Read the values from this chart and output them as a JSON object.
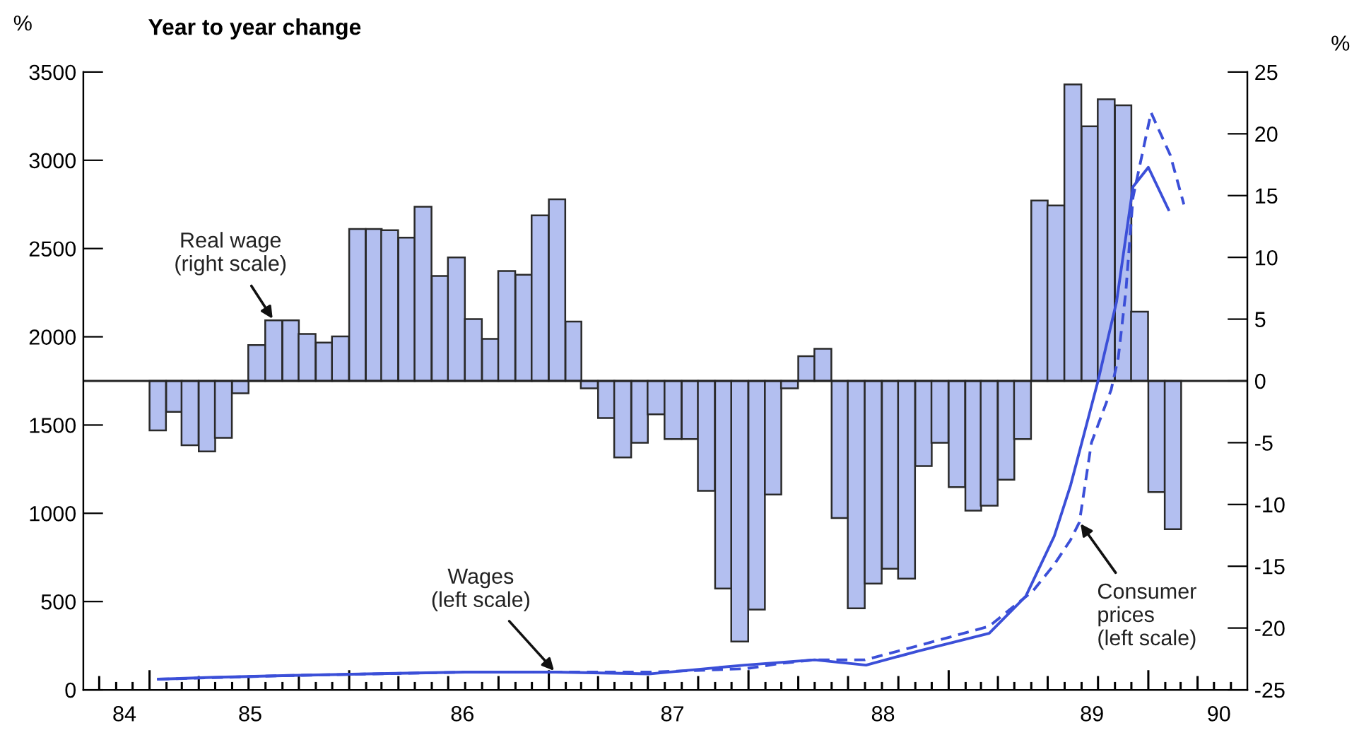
{
  "chart_data": {
    "type": "bar",
    "title": "Year to year change",
    "ylabel": "%",
    "y2label": "%",
    "xlim": [
      "1984-09-02",
      "1990-07-01"
    ],
    "xticks": [
      {
        "value": "1984-11-16",
        "label": "84"
      },
      {
        "value": "1985-07-04",
        "label": "85"
      },
      {
        "value": "1986-07-27",
        "label": "86"
      },
      {
        "value": "1987-08-15",
        "label": "87"
      },
      {
        "value": "1988-09-03",
        "label": "88"
      },
      {
        "value": "1989-09-20",
        "label": "89"
      },
      {
        "value": "1990-05-10",
        "label": "90"
      },
      {
        "value": "1984-10",
        "label": null
      },
      {
        "value": "1984-11",
        "label": null
      },
      {
        "value": "1984-12",
        "label": null
      },
      {
        "value": "1985-01",
        "label": null
      },
      {
        "value": "1985-02",
        "label": null
      },
      {
        "value": "1985-03",
        "label": null
      },
      {
        "value": "1985-04",
        "label": null
      },
      {
        "value": "1985-05",
        "label": null
      },
      {
        "value": "1985-06",
        "label": null
      },
      {
        "value": "1985-07",
        "label": null
      },
      {
        "value": "1985-08",
        "label": null
      },
      {
        "value": "1985-09",
        "label": null
      },
      {
        "value": "1985-10",
        "label": null
      },
      {
        "value": "1985-11",
        "label": null
      },
      {
        "value": "1985-12",
        "label": null
      },
      {
        "value": "1986-01",
        "label": null
      },
      {
        "value": "1986-02",
        "label": null
      },
      {
        "value": "1986-03",
        "label": null
      },
      {
        "value": "1986-04",
        "label": null
      },
      {
        "value": "1986-05",
        "label": null
      },
      {
        "value": "1986-06",
        "label": null
      },
      {
        "value": "1986-07",
        "label": null
      },
      {
        "value": "1986-08",
        "label": null
      },
      {
        "value": "1986-09",
        "label": null
      },
      {
        "value": "1986-10",
        "label": null
      },
      {
        "value": "1986-11",
        "label": null
      },
      {
        "value": "1986-12",
        "label": null
      },
      {
        "value": "1987-01",
        "label": null
      },
      {
        "value": "1987-02",
        "label": null
      },
      {
        "value": "1987-03",
        "label": null
      },
      {
        "value": "1987-04",
        "label": null
      },
      {
        "value": "1987-05",
        "label": null
      },
      {
        "value": "1987-06",
        "label": null
      },
      {
        "value": "1987-07",
        "label": null
      },
      {
        "value": "1987-08",
        "label": null
      },
      {
        "value": "1987-09",
        "label": null
      },
      {
        "value": "1987-10",
        "label": null
      },
      {
        "value": "1987-11",
        "label": null
      },
      {
        "value": "1987-12",
        "label": null
      },
      {
        "value": "1988-01",
        "label": null
      },
      {
        "value": "1988-02",
        "label": null
      },
      {
        "value": "1988-03",
        "label": null
      },
      {
        "value": "1988-04",
        "label": null
      },
      {
        "value": "1988-05",
        "label": null
      },
      {
        "value": "1988-06",
        "label": null
      },
      {
        "value": "1988-07",
        "label": null
      },
      {
        "value": "1988-08",
        "label": null
      },
      {
        "value": "1988-09",
        "label": null
      },
      {
        "value": "1988-10",
        "label": null
      },
      {
        "value": "1988-11",
        "label": null
      },
      {
        "value": "1988-12",
        "label": null
      },
      {
        "value": "1989-01",
        "label": null
      },
      {
        "value": "1989-02",
        "label": null
      },
      {
        "value": "1989-03",
        "label": null
      },
      {
        "value": "1989-04",
        "label": null
      },
      {
        "value": "1989-05",
        "label": null
      },
      {
        "value": "1989-06",
        "label": null
      },
      {
        "value": "1989-07",
        "label": null
      },
      {
        "value": "1989-08",
        "label": null
      },
      {
        "value": "1989-09",
        "label": null
      },
      {
        "value": "1989-10",
        "label": null
      },
      {
        "value": "1989-11",
        "label": null
      },
      {
        "value": "1989-12",
        "label": null
      },
      {
        "value": "1990-01",
        "label": null
      },
      {
        "value": "1990-02",
        "label": null
      },
      {
        "value": "1990-03",
        "label": null
      },
      {
        "value": "1990-04",
        "label": null
      },
      {
        "value": "1990-05",
        "label": null
      },
      {
        "value": "1990-06",
        "label": null
      }
    ],
    "ylim": [
      0,
      3500
    ],
    "yticks": [
      0,
      500,
      1000,
      1500,
      2000,
      2500,
      3000,
      3500
    ],
    "y2lim": [
      -25,
      25
    ],
    "y2ticks": [
      -25,
      -20,
      -15,
      -10,
      -5,
      0,
      5,
      10,
      15,
      20,
      25
    ],
    "grid": false,
    "legend": false,
    "marker": "none",
    "ref_lines": [
      {
        "axis": "y2",
        "value": 0,
        "color": "#222222"
      }
    ],
    "series": [
      {
        "name": "Real wage\n(right scale)",
        "axis": "y2",
        "color": "#b3bff0",
        "x": [
          "1985-01-16",
          "1985-02-15",
          "1985-03-16",
          "1985-04-16",
          "1985-05-16",
          "1985-06-16",
          "1985-07-16",
          "1985-08-16",
          "1985-09-16",
          "1985-10-16",
          "1985-11-16",
          "1985-12-16",
          "1986-01-16",
          "1986-02-15",
          "1986-03-16",
          "1986-04-16",
          "1986-05-16",
          "1986-06-16",
          "1986-07-16",
          "1986-08-16",
          "1986-09-16",
          "1986-10-16",
          "1986-11-16",
          "1986-12-16",
          "1987-01-16",
          "1987-02-15",
          "1987-03-16",
          "1987-04-16",
          "1987-05-16",
          "1987-06-16",
          "1987-07-16",
          "1987-08-16",
          "1987-09-16",
          "1987-10-16",
          "1987-11-16",
          "1987-12-16",
          "1988-01-16",
          "1988-02-15",
          "1988-03-16",
          "1988-04-16",
          "1988-05-16",
          "1988-06-16",
          "1988-07-16",
          "1988-08-16",
          "1988-09-16",
          "1988-10-16",
          "1988-11-16",
          "1988-12-16",
          "1989-01-16",
          "1989-02-15",
          "1989-03-16",
          "1989-04-16",
          "1989-05-16",
          "1989-06-16",
          "1989-07-16",
          "1989-08-16",
          "1989-09-16",
          "1989-10-16",
          "1989-11-16",
          "1989-12-16",
          "1990-01-16",
          "1990-02-15"
        ],
        "values": [
          -4.0,
          -2.5,
          -5.2,
          -5.7,
          -4.6,
          -1.0,
          2.9,
          4.9,
          4.9,
          3.8,
          3.1,
          3.6,
          12.3,
          12.3,
          12.2,
          11.6,
          14.1,
          8.5,
          10.0,
          5.0,
          3.4,
          8.9,
          8.6,
          13.4,
          14.7,
          4.8,
          -0.6,
          -3.0,
          -6.2,
          -5.0,
          -2.7,
          -4.7,
          -4.7,
          -8.9,
          -16.8,
          -21.1,
          -18.5,
          -9.2,
          -0.6,
          2.0,
          2.6,
          -11.1,
          -18.4,
          -16.4,
          -15.2,
          -16.0,
          -6.9,
          -5.0,
          -8.6,
          -10.5,
          -10.1,
          -8.0,
          -4.7,
          14.6,
          14.2,
          24.0,
          20.6,
          22.8,
          22.3,
          5.6,
          -9.0,
          -12.0
        ]
      },
      {
        "name": "Wages\n(left scale)",
        "type": "line",
        "line_style": "solid",
        "color": "#3b4fd8",
        "x": [
          "1985-01-17",
          "1985-04-24",
          "1985-09-01",
          "1986-02-04",
          "1986-08-01",
          "1987-01-13",
          "1987-07-03",
          "1987-12-25",
          "1988-05-01",
          "1988-08-03",
          "1988-11-07",
          "1989-03-16",
          "1989-05-22",
          "1989-07-13",
          "1989-08-12",
          "1989-10-01",
          "1989-11-04",
          "1989-12-04",
          "1990-01-01",
          "1990-02-07"
        ],
        "values": [
          60,
          70,
          80,
          90,
          100,
          100,
          90,
          140,
          170,
          140,
          220,
          320,
          530,
          870,
          1160,
          1750,
          2200,
          2850,
          2960,
          2720
        ]
      },
      {
        "name": "Consumer\nprices\n(left scale)",
        "type": "line",
        "line_style": "dashed",
        "color": "#3b4fd8",
        "x": [
          "1985-01-17",
          "1985-09-01",
          "1986-08-01",
          "1987-07-03",
          "1987-12-28",
          "1988-03-01",
          "1988-05-01",
          "1988-08-01",
          "1988-11-07",
          "1989-03-16",
          "1989-06-04",
          "1989-07-13",
          "1989-08-12",
          "1989-08-28",
          "1989-09-19",
          "1989-10-25",
          "1989-11-07",
          "1989-11-21",
          "1989-12-04",
          "1990-01-06",
          "1990-02-10",
          "1990-03-07"
        ],
        "values": [
          60,
          80,
          100,
          100,
          120,
          150,
          170,
          170,
          250,
          360,
          560,
          710,
          850,
          950,
          1400,
          1700,
          1880,
          2260,
          2790,
          3270,
          3030,
          2750
        ]
      }
    ]
  }
}
